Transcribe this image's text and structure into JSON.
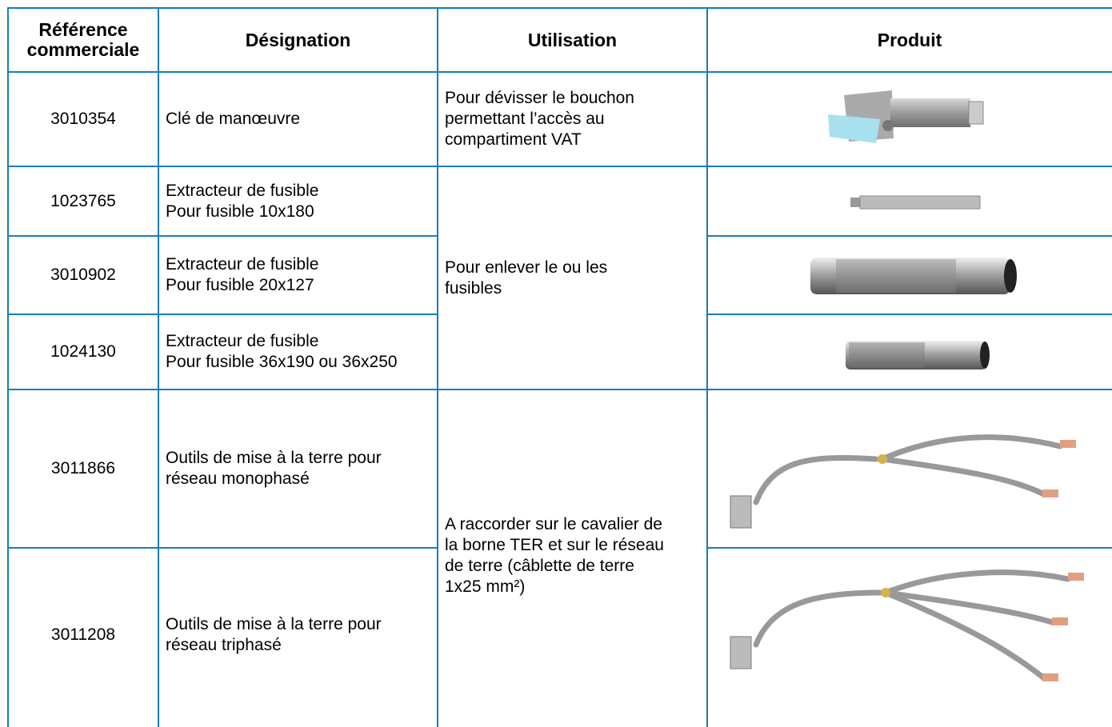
{
  "header": [
    "Référence commerciale",
    "Désignation",
    "Utilisation",
    "Produit"
  ],
  "rows": [
    {
      "reference": "3010354",
      "designation": [
        "Clé de manœuvre"
      ]
    },
    {
      "reference": "1023765",
      "designation": [
        "Extracteur de fusible",
        "Pour fusible 10x180"
      ]
    },
    {
      "reference": "3010902",
      "designation": [
        "Extracteur de fusible",
        "Pour fusible 20x127"
      ]
    },
    {
      "reference": "1024130",
      "designation": [
        "Extracteur de fusible",
        "Pour fusible 36x190 ou 36x250"
      ]
    },
    {
      "reference": "3011866",
      "designation": [
        "Outils de mise à la terre pour",
        "réseau monophasé"
      ]
    },
    {
      "reference": "3011208",
      "designation": [
        "Outils de mise à la terre pour",
        "réseau triphasé"
      ]
    }
  ],
  "usage": [
    [
      "Pour dévisser le bouchon",
      "permettant l’accès au",
      "compartiment VAT"
    ],
    [
      "Pour enlever le ou les",
      "fusibles"
    ],
    [
      "A raccorder sur le cavalier de",
      "la borne TER et sur le réseau",
      "de terre (câblette de terre",
      "1x25 mm²)"
    ]
  ]
}
